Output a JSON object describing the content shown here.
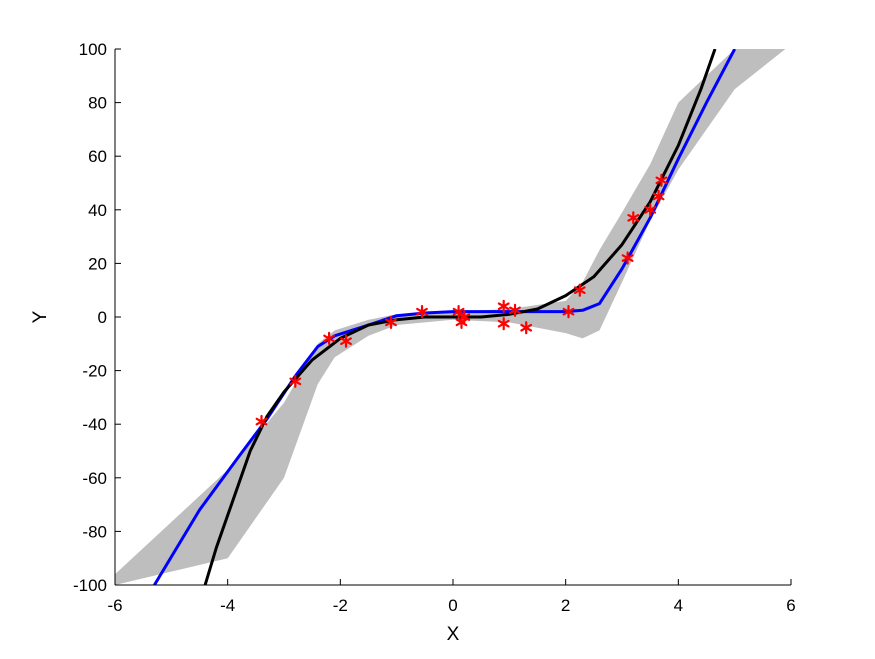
{
  "chart_data": {
    "type": "line",
    "title": "",
    "xlabel": "X",
    "ylabel": "Y",
    "xlim": [
      -6,
      6
    ],
    "ylim": [
      -100,
      100
    ],
    "xticks": [
      -6,
      -4,
      -2,
      0,
      2,
      4,
      6
    ],
    "yticks": [
      -100,
      -80,
      -60,
      -40,
      -20,
      0,
      20,
      40,
      60,
      80,
      100
    ],
    "grid": false,
    "legend": "none",
    "colors": {
      "band": "#bebebe",
      "mean": "#0000ff",
      "true_curve": "#000000",
      "observations": "#ff0000"
    },
    "band": {
      "x": [
        -6.0,
        -4.0,
        -3.0,
        -2.4,
        -2.1,
        -1.5,
        -1.0,
        0.0,
        1.0,
        2.0,
        2.3,
        2.6,
        3.0,
        3.5,
        4.0,
        5.0,
        5.9
      ],
      "upper": [
        -96,
        -57,
        -32,
        -10,
        -5,
        -1,
        1,
        2,
        3,
        6,
        13,
        25,
        39,
        57,
        80,
        100,
        100
      ],
      "lower": [
        -100,
        -90,
        -60,
        -25,
        -15,
        -7,
        -3,
        -1,
        -2,
        -6,
        -8,
        -5,
        13,
        36,
        55,
        85,
        100
      ]
    },
    "series": [
      {
        "x": [
          -5.3,
          -4.5,
          -3.8,
          -3.3,
          -2.8,
          -2.4,
          -2.1,
          -1.5,
          -1.0,
          -0.5,
          0.0,
          0.5,
          1.0,
          1.5,
          2.0,
          2.3,
          2.6,
          3.0,
          3.5,
          4.0,
          4.5,
          5.0
        ],
        "y": [
          -100,
          -72,
          -52,
          -38,
          -22,
          -11,
          -7,
          -3,
          0.5,
          1.5,
          2,
          2,
          2,
          2,
          2,
          2.5,
          5,
          18,
          37,
          59,
          80,
          100
        ]
      },
      {
        "x": [
          -4.4,
          -4.2,
          -4.0,
          -3.6,
          -3.3,
          -3.0,
          -2.5,
          -2.0,
          -1.5,
          -1.0,
          -0.5,
          0.0,
          0.5,
          1.0,
          1.5,
          2.0,
          2.5,
          3.0,
          3.5,
          4.0,
          4.4,
          4.65
        ],
        "y": [
          -100,
          -86,
          -74,
          -50,
          -37,
          -28,
          -16,
          -8,
          -3,
          -1,
          0,
          0,
          0,
          1,
          3,
          8,
          15,
          27,
          43,
          64,
          85,
          100
        ]
      }
    ],
    "observations": {
      "x": [
        -3.4,
        -2.8,
        -2.2,
        -1.9,
        -1.1,
        -0.55,
        0.1,
        0.2,
        0.15,
        0.9,
        0.9,
        1.1,
        1.3,
        2.05,
        2.25,
        3.1,
        3.2,
        3.5,
        3.65,
        3.7
      ],
      "y": [
        -39,
        -24,
        -8,
        -9,
        -2,
        2,
        2,
        0,
        -2,
        4,
        -2.5,
        2.5,
        -4,
        2,
        10,
        22,
        37,
        40,
        45,
        51
      ]
    }
  }
}
